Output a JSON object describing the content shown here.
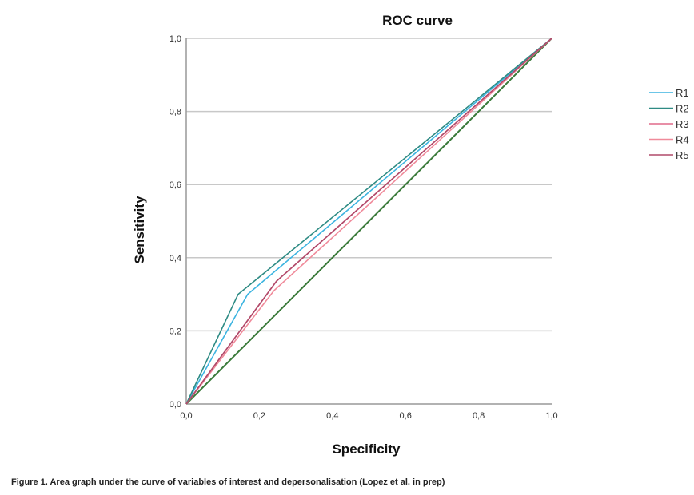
{
  "chart_data": {
    "type": "line",
    "title": "ROC curve",
    "xlabel": "Specificity",
    "ylabel": "Sensitivity",
    "xlim": [
      0,
      1
    ],
    "ylim": [
      0,
      1
    ],
    "xticks": [
      "0,0",
      "0,2",
      "0,4",
      "0,6",
      "0,8",
      "1,0"
    ],
    "yticks": [
      "0,0",
      "0,2",
      "0,4",
      "0,6",
      "0,8",
      "1,0"
    ],
    "grid": "horizontal",
    "legend_position": "right",
    "series": [
      {
        "name": "R1",
        "color": "#3cb4e0",
        "x": [
          0,
          0.168,
          1
        ],
        "y": [
          0,
          0.3,
          1
        ]
      },
      {
        "name": "R2",
        "color": "#2e8b84",
        "x": [
          0,
          0.142,
          1
        ],
        "y": [
          0,
          0.3,
          1
        ]
      },
      {
        "name": "R3",
        "color": "#e06a8a",
        "x": [
          0,
          0.247,
          1
        ],
        "y": [
          0,
          0.336,
          1
        ]
      },
      {
        "name": "R4",
        "color": "#f08a9a",
        "x": [
          0,
          0.24,
          1
        ],
        "y": [
          0,
          0.31,
          1
        ]
      },
      {
        "name": "R5",
        "color": "#b04a6a",
        "x": [
          0,
          0.247,
          1
        ],
        "y": [
          0,
          0.336,
          1
        ]
      }
    ],
    "reference_line": {
      "color": "#3a7a3a",
      "x": [
        0,
        1
      ],
      "y": [
        0,
        1
      ]
    }
  },
  "caption": "Figure 1. Area graph under the curve of variables of interest and depersonalisation (Lopez et al. in prep)"
}
